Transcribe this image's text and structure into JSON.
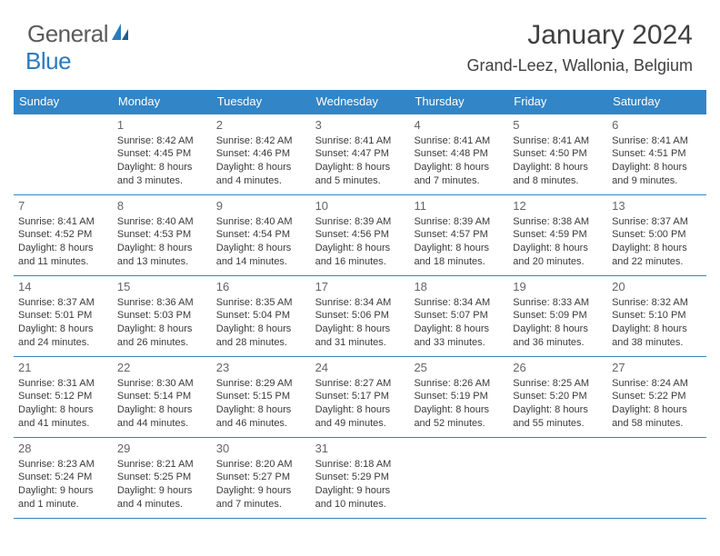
{
  "logo": {
    "text1": "General",
    "text2": "Blue"
  },
  "title": "January 2024",
  "location": "Grand-Leez, Wallonia, Belgium",
  "colors": {
    "header_blue": "#3285c7",
    "rule_blue": "#3285c7",
    "logo_blue": "#2b7bbd",
    "text_gray": "#3a3a3a",
    "daynum_gray": "#656565"
  },
  "days_of_week": [
    "Sunday",
    "Monday",
    "Tuesday",
    "Wednesday",
    "Thursday",
    "Friday",
    "Saturday"
  ],
  "weeks": [
    [
      {
        "n": "",
        "sr": "",
        "ss": "",
        "dl": ""
      },
      {
        "n": "1",
        "sr": "Sunrise: 8:42 AM",
        "ss": "Sunset: 4:45 PM",
        "dl": "Daylight: 8 hours and 3 minutes."
      },
      {
        "n": "2",
        "sr": "Sunrise: 8:42 AM",
        "ss": "Sunset: 4:46 PM",
        "dl": "Daylight: 8 hours and 4 minutes."
      },
      {
        "n": "3",
        "sr": "Sunrise: 8:41 AM",
        "ss": "Sunset: 4:47 PM",
        "dl": "Daylight: 8 hours and 5 minutes."
      },
      {
        "n": "4",
        "sr": "Sunrise: 8:41 AM",
        "ss": "Sunset: 4:48 PM",
        "dl": "Daylight: 8 hours and 7 minutes."
      },
      {
        "n": "5",
        "sr": "Sunrise: 8:41 AM",
        "ss": "Sunset: 4:50 PM",
        "dl": "Daylight: 8 hours and 8 minutes."
      },
      {
        "n": "6",
        "sr": "Sunrise: 8:41 AM",
        "ss": "Sunset: 4:51 PM",
        "dl": "Daylight: 8 hours and 9 minutes."
      }
    ],
    [
      {
        "n": "7",
        "sr": "Sunrise: 8:41 AM",
        "ss": "Sunset: 4:52 PM",
        "dl": "Daylight: 8 hours and 11 minutes."
      },
      {
        "n": "8",
        "sr": "Sunrise: 8:40 AM",
        "ss": "Sunset: 4:53 PM",
        "dl": "Daylight: 8 hours and 13 minutes."
      },
      {
        "n": "9",
        "sr": "Sunrise: 8:40 AM",
        "ss": "Sunset: 4:54 PM",
        "dl": "Daylight: 8 hours and 14 minutes."
      },
      {
        "n": "10",
        "sr": "Sunrise: 8:39 AM",
        "ss": "Sunset: 4:56 PM",
        "dl": "Daylight: 8 hours and 16 minutes."
      },
      {
        "n": "11",
        "sr": "Sunrise: 8:39 AM",
        "ss": "Sunset: 4:57 PM",
        "dl": "Daylight: 8 hours and 18 minutes."
      },
      {
        "n": "12",
        "sr": "Sunrise: 8:38 AM",
        "ss": "Sunset: 4:59 PM",
        "dl": "Daylight: 8 hours and 20 minutes."
      },
      {
        "n": "13",
        "sr": "Sunrise: 8:37 AM",
        "ss": "Sunset: 5:00 PM",
        "dl": "Daylight: 8 hours and 22 minutes."
      }
    ],
    [
      {
        "n": "14",
        "sr": "Sunrise: 8:37 AM",
        "ss": "Sunset: 5:01 PM",
        "dl": "Daylight: 8 hours and 24 minutes."
      },
      {
        "n": "15",
        "sr": "Sunrise: 8:36 AM",
        "ss": "Sunset: 5:03 PM",
        "dl": "Daylight: 8 hours and 26 minutes."
      },
      {
        "n": "16",
        "sr": "Sunrise: 8:35 AM",
        "ss": "Sunset: 5:04 PM",
        "dl": "Daylight: 8 hours and 28 minutes."
      },
      {
        "n": "17",
        "sr": "Sunrise: 8:34 AM",
        "ss": "Sunset: 5:06 PM",
        "dl": "Daylight: 8 hours and 31 minutes."
      },
      {
        "n": "18",
        "sr": "Sunrise: 8:34 AM",
        "ss": "Sunset: 5:07 PM",
        "dl": "Daylight: 8 hours and 33 minutes."
      },
      {
        "n": "19",
        "sr": "Sunrise: 8:33 AM",
        "ss": "Sunset: 5:09 PM",
        "dl": "Daylight: 8 hours and 36 minutes."
      },
      {
        "n": "20",
        "sr": "Sunrise: 8:32 AM",
        "ss": "Sunset: 5:10 PM",
        "dl": "Daylight: 8 hours and 38 minutes."
      }
    ],
    [
      {
        "n": "21",
        "sr": "Sunrise: 8:31 AM",
        "ss": "Sunset: 5:12 PM",
        "dl": "Daylight: 8 hours and 41 minutes."
      },
      {
        "n": "22",
        "sr": "Sunrise: 8:30 AM",
        "ss": "Sunset: 5:14 PM",
        "dl": "Daylight: 8 hours and 44 minutes."
      },
      {
        "n": "23",
        "sr": "Sunrise: 8:29 AM",
        "ss": "Sunset: 5:15 PM",
        "dl": "Daylight: 8 hours and 46 minutes."
      },
      {
        "n": "24",
        "sr": "Sunrise: 8:27 AM",
        "ss": "Sunset: 5:17 PM",
        "dl": "Daylight: 8 hours and 49 minutes."
      },
      {
        "n": "25",
        "sr": "Sunrise: 8:26 AM",
        "ss": "Sunset: 5:19 PM",
        "dl": "Daylight: 8 hours and 52 minutes."
      },
      {
        "n": "26",
        "sr": "Sunrise: 8:25 AM",
        "ss": "Sunset: 5:20 PM",
        "dl": "Daylight: 8 hours and 55 minutes."
      },
      {
        "n": "27",
        "sr": "Sunrise: 8:24 AM",
        "ss": "Sunset: 5:22 PM",
        "dl": "Daylight: 8 hours and 58 minutes."
      }
    ],
    [
      {
        "n": "28",
        "sr": "Sunrise: 8:23 AM",
        "ss": "Sunset: 5:24 PM",
        "dl": "Daylight: 9 hours and 1 minute."
      },
      {
        "n": "29",
        "sr": "Sunrise: 8:21 AM",
        "ss": "Sunset: 5:25 PM",
        "dl": "Daylight: 9 hours and 4 minutes."
      },
      {
        "n": "30",
        "sr": "Sunrise: 8:20 AM",
        "ss": "Sunset: 5:27 PM",
        "dl": "Daylight: 9 hours and 7 minutes."
      },
      {
        "n": "31",
        "sr": "Sunrise: 8:18 AM",
        "ss": "Sunset: 5:29 PM",
        "dl": "Daylight: 9 hours and 10 minutes."
      },
      {
        "n": "",
        "sr": "",
        "ss": "",
        "dl": ""
      },
      {
        "n": "",
        "sr": "",
        "ss": "",
        "dl": ""
      },
      {
        "n": "",
        "sr": "",
        "ss": "",
        "dl": ""
      }
    ]
  ]
}
